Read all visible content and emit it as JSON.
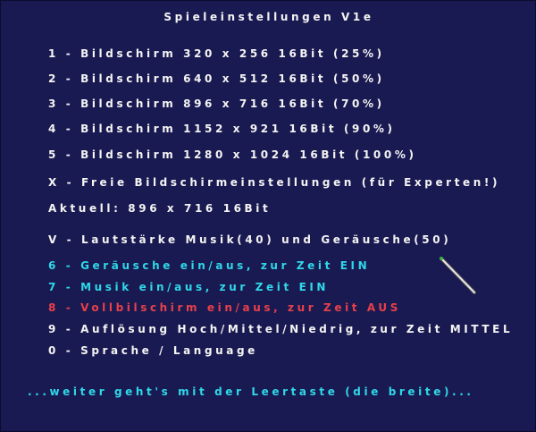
{
  "title": "Spieleinstellungen V1e",
  "menu": [
    {
      "label": "1 - Bildschirm 320 x 256 16Bit (25%)",
      "color": "#f4f4f4"
    },
    {
      "label": "2 - Bildschirm 640 x 512 16Bit (50%)",
      "color": "#f4f4f4"
    },
    {
      "label": "3 - Bildschirm 896 x 716 16Bit (70%)",
      "color": "#f4f4f4"
    },
    {
      "label": "4 - Bildschirm 1152 x 921 16Bit (90%)",
      "color": "#f4f4f4"
    },
    {
      "label": "5 - Bildschirm 1280 x 1024 16Bit (100%)",
      "color": "#f4f4f4"
    },
    {
      "label": "X - Freie Bildschirmeinstellungen (für Experten!)",
      "color": "#f4f4f4"
    }
  ],
  "current": "Aktuell: 896 x 716  16Bit",
  "options": [
    {
      "label": "V - Lautstärke Musik(40) und Geräusche(50)",
      "color": "#f4f4f4"
    },
    {
      "label": "6 - Geräusche ein/aus, zur Zeit EIN",
      "color": "#2fd8e8"
    },
    {
      "label": "7 - Musik ein/aus, zur Zeit EIN",
      "color": "#2fd8e8"
    },
    {
      "label": "8 - Vollbilschirm ein/aus, zur Zeit AUS",
      "color": "#e8404a"
    },
    {
      "label": "9 - Auflösung Hoch/Mittel/Niedrig, zur Zeit MITTEL",
      "color": "#f4f4f4"
    },
    {
      "label": "0 - Sprache / Language",
      "color": "#f4f4f4"
    }
  ],
  "footer": "...weiter geht's mit der Leertaste (die breite)...",
  "cursor_icon": "magic-wand-icon"
}
